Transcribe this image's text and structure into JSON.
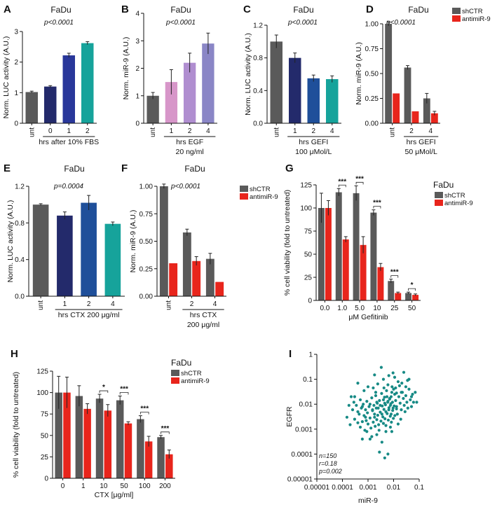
{
  "colors": {
    "gray": "#5a5a5a",
    "red": "#e8251c",
    "navy1": "#232a6b",
    "blue_mid": "#29379a",
    "indigo": "#2b3a92",
    "blue": "#1f4f9a",
    "teal": "#16a39b",
    "pink": "#d796c9",
    "lilac": "#b08ed0",
    "lavender": "#8a86c6",
    "scatter": "#178a85"
  },
  "chart_data": [
    {
      "id": "A",
      "type": "bar",
      "title": "FaDu",
      "pvalue": "p<0.0001",
      "ylabel": "Norm. LUC activity (A.U.)",
      "ylim": [
        0,
        3
      ],
      "yticks": [
        "0",
        "1",
        "2",
        "3"
      ],
      "categories": [
        "unt",
        "0",
        "1",
        "2"
      ],
      "values": [
        1.02,
        1.2,
        2.22,
        2.62
      ],
      "errors": [
        0.03,
        0.03,
        0.07,
        0.05
      ],
      "colors": [
        "gray",
        "navy1",
        "blue_mid",
        "teal"
      ],
      "xlabel_lines": [
        "hrs after 10% FBS"
      ],
      "group_bracket": [
        1,
        3
      ]
    },
    {
      "id": "B",
      "type": "bar",
      "title": "FaDu",
      "pvalue": "p<0.0001",
      "ylabel": "Norm. miR-9 (A.U.)",
      "ylim": [
        0,
        4
      ],
      "yticks": [
        "0",
        "1",
        "2",
        "3",
        "4"
      ],
      "categories": [
        "unt",
        "1",
        "2",
        "4"
      ],
      "values": [
        1.0,
        1.5,
        2.2,
        2.9
      ],
      "errors": [
        0.12,
        0.45,
        0.35,
        0.38
      ],
      "colors": [
        "gray",
        "pink",
        "lilac",
        "lavender"
      ],
      "xlabel_lines": [
        "hrs EGF",
        "20 ng/ml"
      ],
      "group_bracket": [
        1,
        3
      ]
    },
    {
      "id": "C",
      "type": "bar",
      "title": "FaDu",
      "pvalue": "p<0.0001",
      "ylabel": "Norm. LUC activity (A.U.)",
      "ylim": [
        0,
        1.2
      ],
      "yticks": [
        "0.0",
        "0.4",
        "0.8",
        "1.2"
      ],
      "categories": [
        "unt",
        "1",
        "2",
        "4"
      ],
      "values": [
        1.0,
        0.8,
        0.55,
        0.54
      ],
      "errors": [
        0.08,
        0.06,
        0.04,
        0.04
      ],
      "colors": [
        "gray",
        "navy1",
        "blue",
        "teal"
      ],
      "xlabel_lines": [
        "hrs GEFI",
        "100 μMol/L"
      ],
      "group_bracket": [
        1,
        3
      ]
    },
    {
      "id": "D",
      "type": "bar",
      "title": "FaDu",
      "pvalue": "p<0.0001",
      "ylabel": "Norm. miR-9 (A.U.)",
      "ylim": [
        0,
        1.0
      ],
      "yticks": [
        "0.00",
        "0.25",
        "0.50",
        "0.75",
        "1.00"
      ],
      "categories": [
        "unt",
        "2",
        "4"
      ],
      "series": [
        {
          "name": "shCTR",
          "color": "gray",
          "values": [
            1.0,
            0.56,
            0.25
          ],
          "errors": [
            0.02,
            0.02,
            0.05
          ]
        },
        {
          "name": "antimiR-9",
          "color": "red",
          "values": [
            0.3,
            0.12,
            0.1
          ],
          "errors": [
            0.0,
            0.0,
            0.02
          ]
        }
      ],
      "xlabel_lines": [
        "hrs GEFI",
        "50 μMol/L"
      ],
      "group_bracket": [
        1,
        2
      ]
    },
    {
      "id": "E",
      "type": "bar",
      "title": "FaDu",
      "pvalue": "p=0.0004",
      "ylabel": "Norm. LUC activity (A.U.)",
      "ylim": [
        0,
        1.2
      ],
      "yticks": [
        "0.0",
        "0.4",
        "0.8",
        "1.2"
      ],
      "categories": [
        "unt",
        "1",
        "2",
        "4"
      ],
      "values": [
        1.0,
        0.88,
        1.02,
        0.79
      ],
      "errors": [
        0.01,
        0.04,
        0.08,
        0.02
      ],
      "colors": [
        "gray",
        "navy1",
        "blue",
        "teal"
      ],
      "xlabel_lines": [
        "hrs CTX 200 μg/ml"
      ],
      "group_bracket": [
        1,
        3
      ]
    },
    {
      "id": "F",
      "type": "bar",
      "title": "FaDu",
      "pvalue": "p<0.0001",
      "ylabel": "Norm. miR-9 (A.U.)",
      "ylim": [
        0,
        1.0
      ],
      "yticks": [
        "0.00",
        "0.25",
        "0.50",
        "0.75",
        "1.00"
      ],
      "categories": [
        "unt",
        "2",
        "4"
      ],
      "series": [
        {
          "name": "shCTR",
          "color": "gray",
          "values": [
            1.0,
            0.58,
            0.34
          ],
          "errors": [
            0.02,
            0.03,
            0.05
          ]
        },
        {
          "name": "antimiR-9",
          "color": "red",
          "values": [
            0.3,
            0.32,
            0.13
          ],
          "errors": [
            0.0,
            0.04,
            0.0
          ]
        }
      ],
      "xlabel_lines": [
        "hrs CTX",
        "200 μg/ml"
      ],
      "group_bracket": [
        1,
        2
      ]
    },
    {
      "id": "G",
      "type": "bar",
      "title": "FaDu",
      "ylabel": "% cell viability (fold to untreated)",
      "ylim": [
        0,
        125
      ],
      "yticks": [
        "0",
        "25",
        "50",
        "75",
        "100",
        "125"
      ],
      "categories": [
        "0.0",
        "1.0",
        "5.0",
        "10",
        "25",
        "50"
      ],
      "series": [
        {
          "name": "shCTR",
          "color": "gray",
          "values": [
            100,
            117,
            116,
            95,
            21,
            8
          ],
          "errors": [
            16,
            4,
            8,
            3,
            2,
            1
          ]
        },
        {
          "name": "antimiR-9",
          "color": "red",
          "values": [
            100,
            66,
            60,
            36,
            8,
            6
          ],
          "errors": [
            8,
            3,
            9,
            4,
            1,
            1
          ]
        }
      ],
      "significance": [
        "",
        "***",
        "***",
        "***",
        "***",
        "*"
      ],
      "xlabel_lines": [
        "μM Gefitinib"
      ]
    },
    {
      "id": "H",
      "type": "bar",
      "title": "FaDu",
      "ylabel": "% cell viability (fold to untreated)",
      "ylim": [
        0,
        125
      ],
      "yticks": [
        "0",
        "25",
        "50",
        "75",
        "100",
        "125"
      ],
      "categories": [
        "0",
        "1",
        "10",
        "50",
        "100",
        "200"
      ],
      "series": [
        {
          "name": "shCTR",
          "color": "gray",
          "values": [
            100,
            96,
            93,
            91,
            69,
            48
          ],
          "errors": [
            19,
            12,
            5,
            5,
            4,
            2
          ]
        },
        {
          "name": "antimiR-9",
          "color": "red",
          "values": [
            100,
            81,
            79,
            64,
            43,
            28
          ],
          "errors": [
            18,
            6,
            7,
            2,
            6,
            5
          ]
        }
      ],
      "significance": [
        "",
        "",
        "*",
        "***",
        "***",
        "***"
      ],
      "xlabel_lines": [
        "CTX [μg/ml]"
      ]
    },
    {
      "id": "I",
      "type": "scatter",
      "xlabel": "miR-9",
      "ylabel": "EGFR",
      "xlim": [
        1e-05,
        0.1
      ],
      "ylim": [
        1e-05,
        1
      ],
      "xticks": [
        "0.00001",
        "0.0001",
        "0.001",
        "0.01",
        "0.1"
      ],
      "yticks": [
        "0.00001",
        "0.0001",
        "0.001",
        "0.01",
        "0.1",
        "1"
      ],
      "stats": [
        "n=150",
        "r=0.18",
        "p=0.002"
      ],
      "color": "scatter",
      "points": [
        [
          0.0003,
          0.02
        ],
        [
          0.0005,
          0.015
        ],
        [
          0.001,
          0.05
        ],
        [
          0.002,
          0.03
        ],
        [
          0.004,
          0.1
        ],
        [
          0.006,
          0.06
        ],
        [
          0.008,
          0.02
        ],
        [
          0.01,
          0.04
        ],
        [
          0.015,
          0.08
        ],
        [
          0.02,
          0.03
        ],
        [
          0.03,
          0.05
        ],
        [
          0.04,
          0.1
        ],
        [
          0.05,
          0.02
        ],
        [
          0.0004,
          0.005
        ],
        [
          0.0006,
          0.008
        ],
        [
          0.0008,
          0.003
        ],
        [
          0.0012,
          0.01
        ],
        [
          0.0015,
          0.006
        ],
        [
          0.0018,
          0.004
        ],
        [
          0.0022,
          0.012
        ],
        [
          0.0025,
          0.007
        ],
        [
          0.003,
          0.009
        ],
        [
          0.0035,
          0.004
        ],
        [
          0.004,
          0.015
        ],
        [
          0.0045,
          0.011
        ],
        [
          0.005,
          0.005
        ],
        [
          0.0055,
          0.02
        ],
        [
          0.006,
          0.013
        ],
        [
          0.0065,
          0.006
        ],
        [
          0.007,
          0.017
        ],
        [
          0.0075,
          0.009
        ],
        [
          0.008,
          0.004
        ],
        [
          0.0085,
          0.03
        ],
        [
          0.009,
          0.012
        ],
        [
          0.0095,
          0.007
        ],
        [
          0.011,
          0.025
        ],
        [
          0.012,
          0.014
        ],
        [
          0.013,
          0.008
        ],
        [
          0.014,
          0.004
        ],
        [
          0.016,
          0.02
        ],
        [
          0.018,
          0.011
        ],
        [
          0.02,
          0.006
        ],
        [
          0.022,
          0.03
        ],
        [
          0.024,
          0.017
        ],
        [
          0.026,
          0.009
        ],
        [
          0.028,
          0.005
        ],
        [
          0.03,
          0.022
        ],
        [
          0.033,
          0.012
        ],
        [
          0.036,
          0.007
        ],
        [
          0.04,
          0.04
        ],
        [
          0.045,
          0.015
        ],
        [
          0.05,
          0.008
        ],
        [
          0.055,
          0.025
        ],
        [
          0.06,
          0.012
        ],
        [
          0.00015,
          0.003
        ],
        [
          0.0002,
          0.0015
        ],
        [
          0.00025,
          0.006
        ],
        [
          0.0003,
          0.0025
        ],
        [
          0.00035,
          0.009
        ],
        [
          0.0004,
          0.0018
        ],
        [
          0.00045,
          0.004
        ],
        [
          0.0005,
          0.0012
        ],
        [
          0.00055,
          0.007
        ],
        [
          0.0006,
          0.002
        ],
        [
          0.00065,
          0.01
        ],
        [
          0.0007,
          0.0035
        ],
        [
          0.00075,
          0.0009
        ],
        [
          0.0008,
          0.006
        ],
        [
          0.00085,
          0.0022
        ],
        [
          0.0009,
          0.013
        ],
        [
          0.00095,
          0.0045
        ],
        [
          0.001,
          0.0016
        ],
        [
          0.0011,
          0.008
        ],
        [
          0.0012,
          0.0028
        ],
        [
          0.0013,
          0.0011
        ],
        [
          0.0014,
          0.018
        ],
        [
          0.0015,
          0.0055
        ],
        [
          0.0016,
          0.0019
        ],
        [
          0.0017,
          0.009
        ],
        [
          0.0018,
          0.003
        ],
        [
          0.0019,
          0.0013
        ],
        [
          0.002,
          0.022
        ],
        [
          0.0021,
          0.007
        ],
        [
          0.0022,
          0.0024
        ],
        [
          0.0023,
          0.011
        ],
        [
          0.0024,
          0.0036
        ],
        [
          0.0026,
          0.0015
        ],
        [
          0.0028,
          0.014
        ],
        [
          0.003,
          0.0048
        ],
        [
          0.0032,
          0.0021
        ],
        [
          0.0034,
          0.027
        ],
        [
          0.0036,
          0.0085
        ],
        [
          0.0038,
          0.0031
        ],
        [
          0.004,
          0.0017
        ],
        [
          0.0042,
          0.0062
        ],
        [
          0.0044,
          0.019
        ],
        [
          0.0046,
          0.0026
        ],
        [
          0.0048,
          0.0095
        ],
        [
          0.005,
          0.0014
        ],
        [
          0.0053,
          0.035
        ],
        [
          0.0056,
          0.0042
        ],
        [
          0.0059,
          0.012
        ],
        [
          0.0062,
          0.0023
        ],
        [
          0.0066,
          0.0072
        ],
        [
          0.007,
          0.016
        ],
        [
          0.0074,
          0.0033
        ],
        [
          0.0078,
          0.0105
        ],
        [
          0.0082,
          0.0019
        ],
        [
          0.0087,
          0.05
        ],
        [
          0.0092,
          0.0056
        ],
        [
          0.0098,
          0.0027
        ],
        [
          0.0105,
          0.0085
        ],
        [
          0.0112,
          0.0035
        ],
        [
          0.012,
          0.045
        ],
        [
          0.013,
          0.0065
        ],
        [
          0.0014,
          0.0005
        ],
        [
          0.0022,
          0.0006
        ],
        [
          0.0035,
          0.0003
        ],
        [
          0.0045,
          7e-05
        ],
        [
          0.006,
          0.0001
        ],
        [
          0.0028,
          0.00012
        ],
        [
          0.0033,
          0.3
        ],
        [
          0.0018,
          0.15
        ],
        [
          0.025,
          0.19
        ],
        [
          0.0004,
          0.07
        ],
        [
          0.0007,
          0.035
        ],
        [
          0.0016,
          0.045
        ],
        [
          0.0065,
          0.14
        ],
        [
          0.011,
          0.12
        ],
        [
          0.017,
          0.055
        ],
        [
          0.035,
          0.09
        ],
        [
          0.07,
          0.03
        ],
        [
          0.08,
          0.012
        ],
        [
          0.00018,
          0.009
        ],
        [
          0.00028,
          0.012
        ],
        [
          0.0027,
          0.0009
        ],
        [
          0.0085,
          0.0008
        ],
        [
          0.015,
          0.0016
        ],
        [
          0.019,
          0.0025
        ],
        [
          0.0095,
          0.18
        ],
        [
          0.0042,
          0.045
        ],
        [
          0.0024,
          0.065
        ],
        [
          0.013,
          0.028
        ],
        [
          0.021,
          0.07
        ],
        [
          0.0012,
          0.0004
        ],
        [
          0.005,
          0.0008
        ],
        [
          0.0075,
          0.0012
        ],
        [
          0.0009,
          0.0008
        ],
        [
          0.0006,
          0.0004
        ],
        [
          0.00022,
          0.02
        ]
      ]
    }
  ]
}
